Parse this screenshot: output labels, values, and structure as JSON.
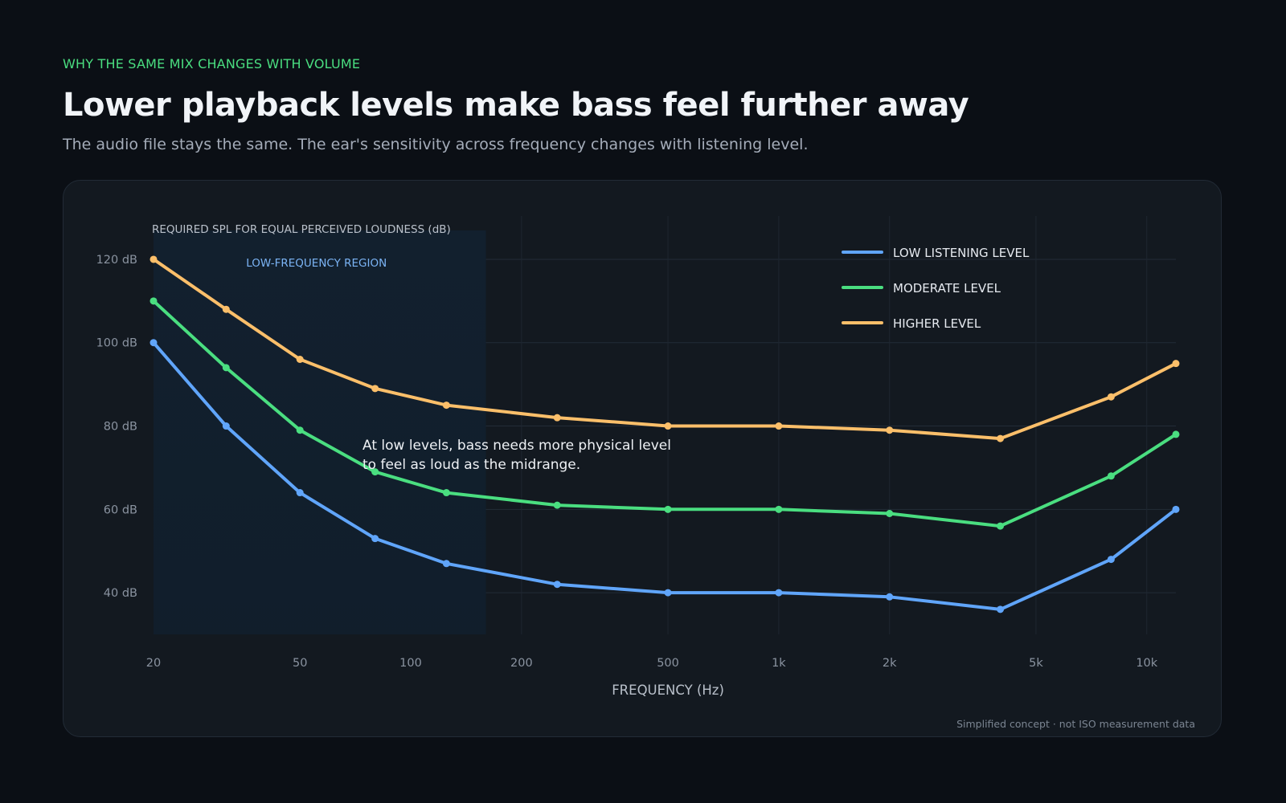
{
  "header": {
    "eyebrow": "WHY THE SAME MIX CHANGES WITH VOLUME",
    "title": "Lower playback levels make bass feel further away",
    "subtitle": "The audio file stays the same. The ear's sensitivity across frequency changes with listening level."
  },
  "footnote": "Simplified concept · not ISO measurement data",
  "colors": {
    "eyebrow": "#4ade80",
    "low": "#60a5fa",
    "moderate": "#4ade80",
    "higher": "#fbbf6a",
    "region_label": "#7bb4f5"
  },
  "chart_data": {
    "type": "line",
    "ylabel": "REQUIRED SPL FOR EQUAL PERCEIVED LOUDNESS (dB)",
    "xlabel": "FREQUENCY (Hz)",
    "x_scale": "log",
    "xlim": [
      20,
      12000
    ],
    "ylim": [
      30,
      125
    ],
    "y_ticks": [
      {
        "value": 120,
        "label": "120 dB"
      },
      {
        "value": 100,
        "label": "100 dB"
      },
      {
        "value": 80,
        "label": "80 dB"
      },
      {
        "value": 60,
        "label": "60 dB"
      },
      {
        "value": 40,
        "label": "40 dB"
      }
    ],
    "x_ticks": [
      {
        "value": 20,
        "label": "20"
      },
      {
        "value": 50,
        "label": "50"
      },
      {
        "value": 100,
        "label": "100"
      },
      {
        "value": 200,
        "label": "200"
      },
      {
        "value": 500,
        "label": "500"
      },
      {
        "value": 1000,
        "label": "1k"
      },
      {
        "value": 2000,
        "label": "2k"
      },
      {
        "value": 5000,
        "label": "5k"
      },
      {
        "value": 10000,
        "label": "10k"
      }
    ],
    "x": [
      20,
      31.5,
      50,
      80,
      125,
      250,
      500,
      1000,
      2000,
      4000,
      8000,
      12000
    ],
    "series": [
      {
        "name": "LOW LISTENING LEVEL",
        "color": "#60a5fa",
        "values": [
          100,
          80,
          64,
          53,
          47,
          42,
          40,
          40,
          39,
          36,
          48,
          60
        ]
      },
      {
        "name": "MODERATE LEVEL",
        "color": "#4ade80",
        "values": [
          110,
          94,
          79,
          69,
          64,
          61,
          60,
          60,
          59,
          56,
          68,
          78
        ]
      },
      {
        "name": "HIGHER LEVEL",
        "color": "#fbbf6a",
        "values": [
          120,
          108,
          96,
          89,
          85,
          82,
          80,
          80,
          79,
          77,
          87,
          95
        ]
      }
    ],
    "region": {
      "label": "LOW-FREQUENCY REGION",
      "from": 20,
      "to": 160
    },
    "annotation": {
      "lines": [
        "At low levels, bass needs more physical level",
        "to feel as loud as the midrange."
      ]
    },
    "grid": true,
    "legend_position": "top-right"
  }
}
